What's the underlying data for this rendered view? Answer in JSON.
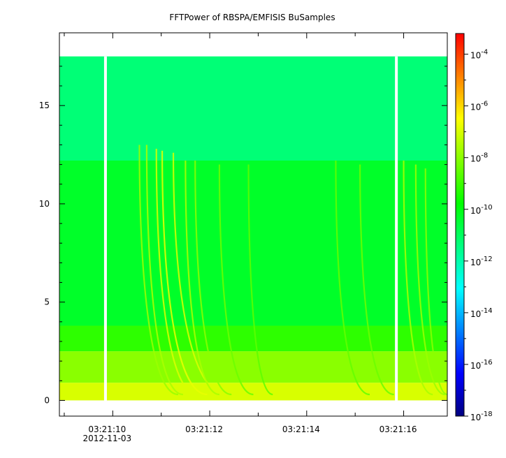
{
  "chart_data": {
    "type": "heatmap",
    "title": "FFTPower of RBSPA/EMFISIS  BuSamples",
    "xlabel": "",
    "ylabel": "",
    "x_ticks": [
      {
        "label": "03:21:10",
        "sub": "2012-11-03"
      },
      {
        "label": "03:21:12",
        "sub": ""
      },
      {
        "label": "03:21:14",
        "sub": ""
      },
      {
        "label": "03:21:16",
        "sub": ""
      }
    ],
    "xlim_seconds": [
      8.9,
      16.9
    ],
    "ylim": [
      -0.8,
      18.7
    ],
    "y_ticks": [
      0,
      5,
      10,
      15
    ],
    "colorbar": {
      "scale": "log",
      "range_exponent": [
        -18,
        -3.2
      ],
      "tick_exponents": [
        -4,
        -6,
        -8,
        -10,
        -12,
        -14,
        -16,
        -18
      ],
      "tick_base": "10",
      "colormap": [
        "#000080",
        "#0000ff",
        "#0080ff",
        "#00ffff",
        "#00ff80",
        "#00ff00",
        "#80ff00",
        "#ffff00",
        "#ff8000",
        "#ff0000"
      ]
    },
    "data_region": {
      "y_min": 0,
      "y_max": 17.5
    },
    "data_gaps_seconds": [
      9.85,
      15.85
    ],
    "bands": [
      {
        "y_from": 0.0,
        "y_to": 0.9,
        "log_power": -7.0
      },
      {
        "y_from": 0.9,
        "y_to": 2.5,
        "log_power": -8.0
      },
      {
        "y_from": 2.5,
        "y_to": 3.8,
        "log_power": -9.2
      },
      {
        "y_from": 3.8,
        "y_to": 12.2,
        "log_power": -10.3
      },
      {
        "y_from": 12.2,
        "y_to": 17.5,
        "log_power": -11.3
      }
    ],
    "chorus_elements": [
      {
        "t": 10.55,
        "f_top": 13.0,
        "t_end": 11.35,
        "log_power": -7.8
      },
      {
        "t": 10.7,
        "f_top": 13.0,
        "t_end": 11.45,
        "log_power": -7.6
      },
      {
        "t": 10.9,
        "f_top": 12.8,
        "t_end": 11.75,
        "log_power": -7.0
      },
      {
        "t": 11.02,
        "f_top": 12.7,
        "t_end": 11.95,
        "log_power": -6.8
      },
      {
        "t": 11.25,
        "f_top": 12.6,
        "t_end": 12.35,
        "log_power": -7.0
      },
      {
        "t": 11.5,
        "f_top": 12.2,
        "t_end": 12.2,
        "log_power": -7.6
      },
      {
        "t": 11.7,
        "f_top": 12.2,
        "t_end": 12.45,
        "log_power": -8.0
      },
      {
        "t": 12.2,
        "f_top": 12.0,
        "t_end": 12.9,
        "log_power": -8.4
      },
      {
        "t": 12.8,
        "f_top": 12.0,
        "t_end": 13.3,
        "log_power": -8.6
      },
      {
        "t": 14.6,
        "f_top": 12.2,
        "t_end": 15.3,
        "log_power": -8.5
      },
      {
        "t": 15.1,
        "f_top": 12.0,
        "t_end": 15.8,
        "log_power": -8.4
      },
      {
        "t": 16.0,
        "f_top": 12.2,
        "t_end": 16.6,
        "log_power": -7.6
      },
      {
        "t": 16.25,
        "f_top": 12.0,
        "t_end": 16.85,
        "log_power": -7.8
      },
      {
        "t": 16.45,
        "f_top": 11.8,
        "t_end": 16.9,
        "log_power": -8.0
      }
    ],
    "grid": false,
    "legend": "colorbar-right"
  }
}
